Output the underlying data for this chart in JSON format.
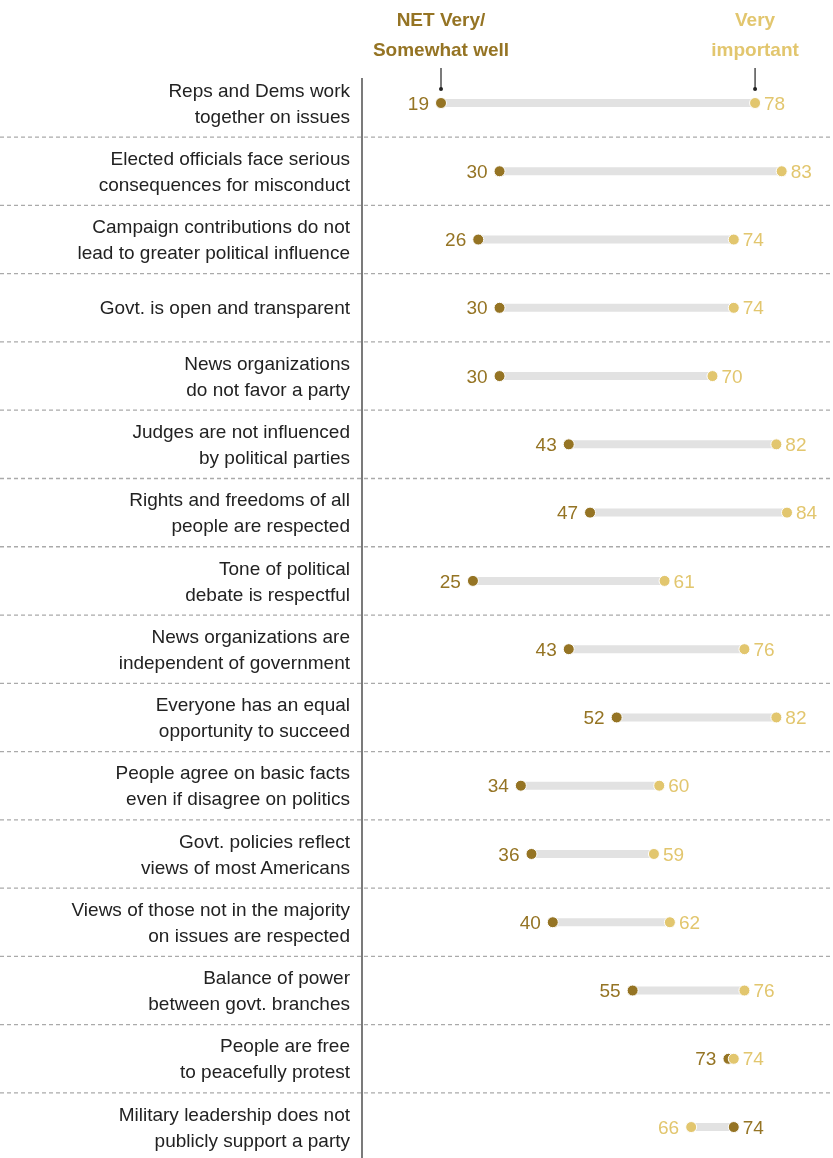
{
  "chart_data": {
    "type": "scatter",
    "orientation": "horizontal",
    "grid": "y",
    "data_labels": true,
    "legend": "top",
    "marker": "circle",
    "categories": [
      "Reps and Dems work\ntogether on issues",
      "Elected officials face serious\nconsequences for misconduct",
      "Campaign contributions do not\nlead to greater political influence",
      "Govt. is open and transparent",
      "News organizations\ndo not favor a party",
      "Judges are not influenced\nby political parties",
      "Rights and freedoms of all\npeople are respected",
      "Tone of political\ndebate is respectful",
      "News organizations are\nindependent of government",
      "Everyone has an equal\nopportunity to succeed",
      "People agree on basic facts\neven if disagree on politics",
      "Govt. policies reflect\nviews of most Americans",
      "Views of those not in the majority\non issues are respected",
      "Balance of power\nbetween govt. branches",
      "People are free\nto peacefully protest",
      "Military leadership does not\npublicly support a party"
    ],
    "series": [
      {
        "name": "NET Very/\nSomewhat well",
        "color": "#957424",
        "values": [
          19,
          30,
          26,
          30,
          30,
          43,
          47,
          25,
          43,
          52,
          34,
          36,
          40,
          55,
          73,
          74
        ]
      },
      {
        "name": "Very\nimportant",
        "color": "#e2c66e",
        "values": [
          78,
          83,
          74,
          74,
          70,
          82,
          84,
          61,
          76,
          82,
          60,
          59,
          62,
          76,
          74,
          66
        ]
      }
    ]
  }
}
